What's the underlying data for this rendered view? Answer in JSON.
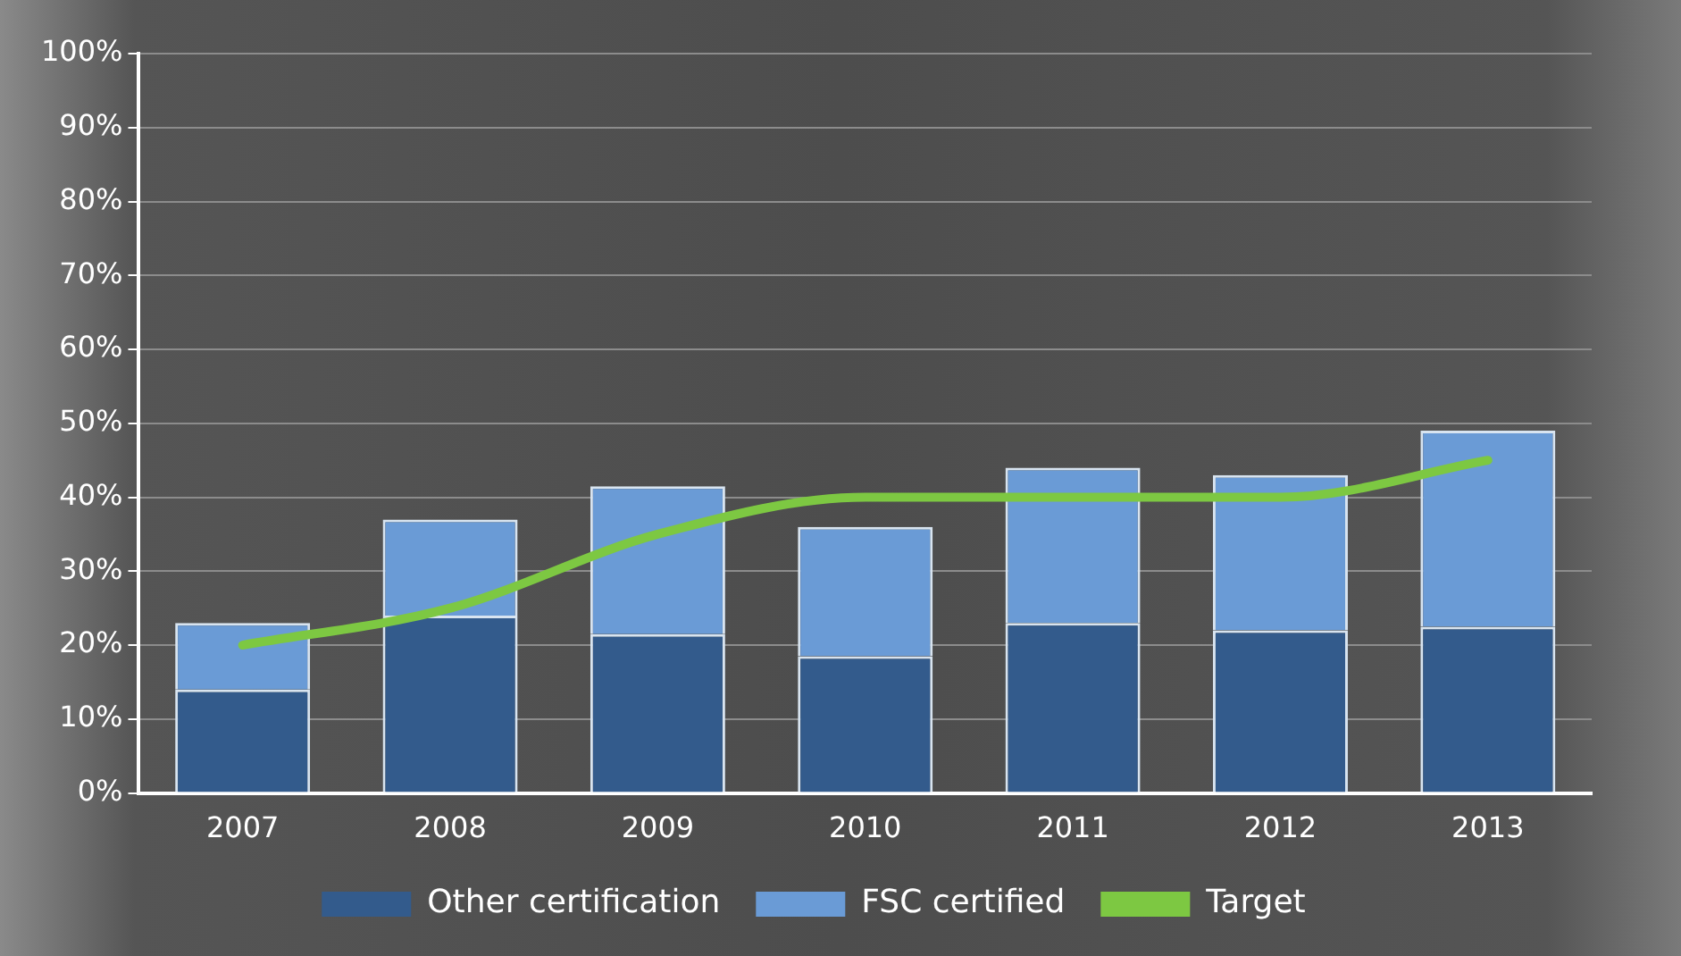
{
  "chart_data": {
    "type": "bar",
    "stacked": true,
    "categories": [
      "2007",
      "2008",
      "2009",
      "2010",
      "2011",
      "2012",
      "2013"
    ],
    "series": [
      {
        "name": "Other certification",
        "color": "#335b8c",
        "values": [
          14,
          24,
          21.5,
          18.5,
          23,
          22,
          22.5
        ]
      },
      {
        "name": "FSC certified",
        "color": "#6a9bd6",
        "values": [
          9,
          13,
          20,
          17.5,
          21,
          21,
          26.5
        ]
      },
      {
        "name": "Target",
        "type": "line",
        "color": "#7dc842",
        "values": [
          20,
          25,
          35,
          40,
          40,
          40,
          45
        ]
      }
    ],
    "ylim": [
      0,
      100
    ],
    "yticks": [
      {
        "value": 0,
        "label": "0%"
      },
      {
        "value": 10,
        "label": "10%"
      },
      {
        "value": 20,
        "label": "20%"
      },
      {
        "value": 30,
        "label": "30%"
      },
      {
        "value": 40,
        "label": "40%"
      },
      {
        "value": 50,
        "label": "50%"
      },
      {
        "value": 60,
        "label": "60%"
      },
      {
        "value": 70,
        "label": "70%"
      },
      {
        "value": 80,
        "label": "80%"
      },
      {
        "value": 90,
        "label": "90%"
      },
      {
        "value": 100,
        "label": "100%"
      }
    ],
    "grid": "y",
    "legend": "bottom",
    "marker": "none",
    "line_style": "solid"
  }
}
